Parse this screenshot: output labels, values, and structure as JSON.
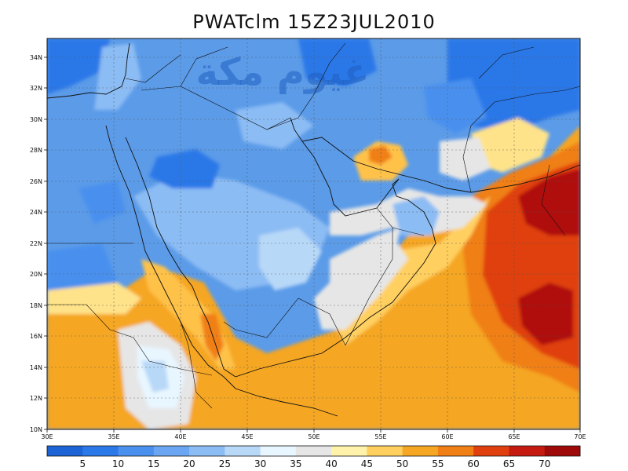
{
  "title": "PWATclm 15Z23JUL2010",
  "watermark": "غيوم مكة",
  "lon_labels": [
    "30E",
    "35E",
    "40E",
    "45E",
    "50E",
    "55E",
    "60E",
    "65E",
    "70E"
  ],
  "lat_labels": [
    "10N",
    "12N",
    "14N",
    "16N",
    "18N",
    "20N",
    "22N",
    "24N",
    "26N",
    "28N",
    "30N",
    "32N",
    "34N"
  ],
  "colorbar": {
    "levels": [
      "5",
      "10",
      "15",
      "20",
      "25",
      "30",
      "35",
      "40",
      "45",
      "50",
      "55",
      "60",
      "65",
      "70"
    ],
    "colors": [
      "#1c63d6",
      "#2b78e8",
      "#4a90ee",
      "#6aa6f1",
      "#8cbcf4",
      "#b8d8f8",
      "#e8f6ff",
      "#e6e6e6",
      "#fff2aa",
      "#ffd060",
      "#f5a623",
      "#f07f15",
      "#e04010",
      "#c51a10",
      "#9e0a0a"
    ]
  },
  "map_colors": {
    "deep_blue": "#2b78e8",
    "mid_blue": "#5b9be8",
    "light_blue": "#8cbcf4",
    "pale_blue": "#b8d8f8",
    "white": "#e8f6ff",
    "grey": "#e6e6e6",
    "yellow": "#ffe38a",
    "light_orange": "#ffc24a",
    "orange": "#f5a623",
    "dark_orange": "#f07f15",
    "red": "#e04010",
    "dark_red": "#b01010"
  }
}
